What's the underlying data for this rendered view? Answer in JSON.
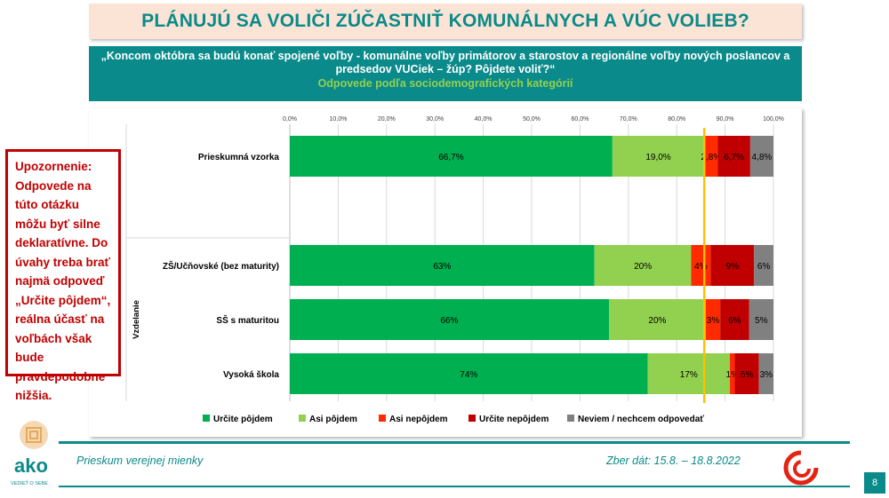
{
  "title": "PLÁNUJÚ SA VOLIČI ZÚČASTNIŤ KOMUNÁLNYCH A VÚC VOLIEB?",
  "question": "„Koncom októbra sa budú konať spojené voľby - komunálne voľby primátorov a starostov a regionálne voľby nových poslancov a predsedov VUCiek – žúp? Pôjdete voliť?“",
  "subtitle": "Odpovede podľa sociodemografických kategórií",
  "warning": "Upozornenie: Odpovede na túto otázku môžu byť silne deklaratívne. Do úvahy treba brať najmä odpoveď „Určite pôjdem“, reálna účasť na voľbách však bude pravdepodobne nižšia.",
  "footer": {
    "left": "Prieskum verejnej mienky",
    "right": "Zber dát: 15.8. – 18.8.2022",
    "page": "8",
    "logo_text": "ako",
    "logo_sub": "VEDIEŤ O SEBE"
  },
  "chart_data": {
    "type": "bar",
    "orientation": "horizontal",
    "stacked": true,
    "xlim": [
      0,
      100
    ],
    "x_ticks": [
      "0,0%",
      "10,0%",
      "20,0%",
      "30,0%",
      "40,0%",
      "50,0%",
      "60,0%",
      "70,0%",
      "80,0%",
      "90,0%",
      "100,0%"
    ],
    "group_label": "Vzdelanie",
    "categories": [
      "Prieskumná vzorka",
      "ZŠ/Učňovské (bez maturity)",
      "SŠ s maturitou",
      "Vysoká škola"
    ],
    "series": [
      {
        "name": "Určite pôjdem",
        "color": "#00b050",
        "values": [
          66.7,
          63,
          66,
          74
        ],
        "labels": [
          "66,7%",
          "63%",
          "66%",
          "74%"
        ]
      },
      {
        "name": "Asi pôjdem",
        "color": "#92d050",
        "values": [
          19.0,
          20,
          20,
          17
        ],
        "labels": [
          "19,0%",
          "20%",
          "20%",
          "17%"
        ]
      },
      {
        "name": "Asi nepôjdem",
        "color": "#ff2a00",
        "values": [
          2.8,
          4,
          3,
          1
        ],
        "labels": [
          "2,8%",
          "4%",
          "3%",
          "1%"
        ]
      },
      {
        "name": "Určite nepôjdem",
        "color": "#c00000",
        "values": [
          6.7,
          9,
          6,
          5
        ],
        "labels": [
          "6,7%",
          "9%",
          "6%",
          "5%"
        ]
      },
      {
        "name": "Neviem / nechcem odpovedať",
        "color": "#808080",
        "values": [
          4.8,
          6,
          5,
          3
        ],
        "labels": [
          "4,8%",
          "6%",
          "5%",
          "3%"
        ]
      }
    ],
    "reference_line": {
      "value": 85.7,
      "color": "#ffc000"
    },
    "legend_position": "bottom",
    "grid": true
  }
}
